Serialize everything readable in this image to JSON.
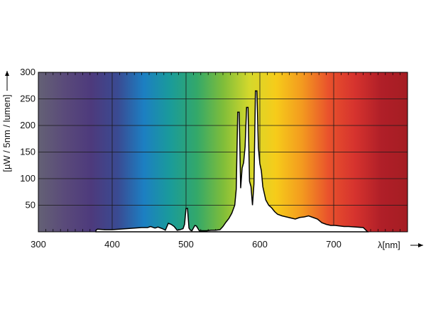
{
  "chart_data": {
    "type": "area",
    "title": "",
    "xlabel": "λ[nm]",
    "ylabel": "[µW / 5nm / lumen]",
    "xlim": [
      300,
      800
    ],
    "ylim": [
      0,
      300
    ],
    "xticks": [
      300,
      400,
      500,
      600,
      700
    ],
    "yticks": [
      50,
      100,
      150,
      200,
      250,
      300
    ],
    "grid": true,
    "background": "visible-spectrum gradient",
    "series": [
      {
        "x": [
          378,
          380,
          390,
          400,
          410,
          420,
          430,
          440,
          448,
          452,
          458,
          462,
          468,
          472,
          476,
          480,
          484,
          488,
          492,
          496,
          498,
          500,
          502,
          504,
          506,
          508,
          512,
          514,
          518,
          522,
          528,
          534,
          540,
          546,
          550,
          554,
          558,
          562,
          566,
          568,
          570,
          572,
          574,
          576,
          578,
          580,
          582,
          584,
          586,
          588,
          590,
          592,
          594,
          596,
          598,
          600,
          602,
          604,
          608,
          612,
          616,
          620,
          624,
          630,
          636,
          642,
          648,
          654,
          660,
          666,
          672,
          678,
          684,
          690,
          696,
          702,
          708,
          714,
          720,
          730,
          740,
          746
        ],
        "y": [
          3,
          5,
          4,
          4,
          5,
          6,
          7,
          8,
          8,
          10,
          7,
          9,
          6,
          3,
          16,
          14,
          10,
          3,
          4,
          6,
          14,
          44,
          44,
          7,
          3,
          2,
          12,
          11,
          2,
          2,
          2,
          3,
          3,
          4,
          10,
          18,
          25,
          35,
          50,
          80,
          225,
          225,
          82,
          120,
          130,
          160,
          234,
          234,
          95,
          85,
          50,
          90,
          265,
          265,
          158,
          128,
          115,
          85,
          60,
          50,
          45,
          38,
          33,
          30,
          28,
          26,
          24,
          27,
          28,
          30,
          27,
          24,
          17,
          14,
          12,
          12,
          11,
          10,
          10,
          9,
          8,
          0
        ]
      }
    ]
  },
  "colors": {
    "spectrum": [
      "#646175",
      "#5a4a7a",
      "#4d3a7c",
      "#3a4a92",
      "#1c7fc2",
      "#1a9b9a",
      "#33a86a",
      "#7ebd3a",
      "#d4d82c",
      "#f6cc1a",
      "#f39a1f",
      "#e9522c",
      "#d6332e",
      "#b01f28",
      "#a51d23"
    ],
    "curve_fill": "#ffffff",
    "curve_stroke": "#000000",
    "grid": "#1a1a1a"
  }
}
